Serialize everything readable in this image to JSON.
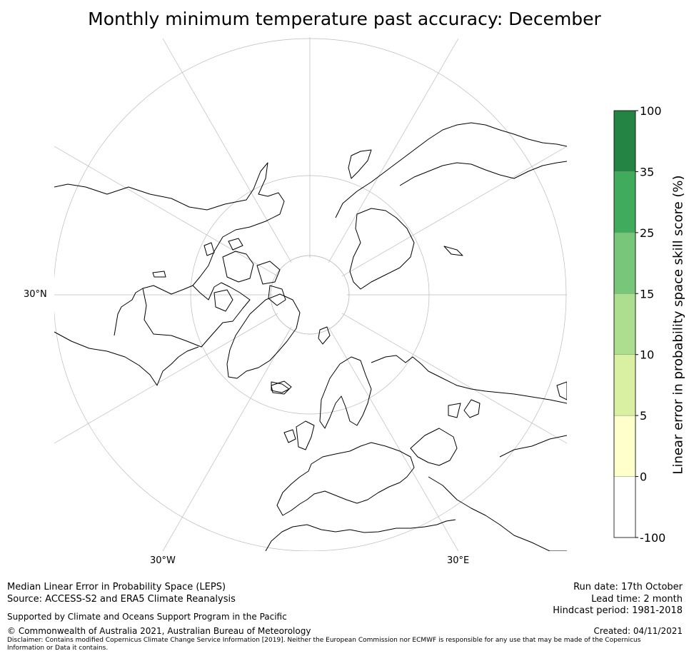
{
  "title": "Monthly minimum temperature past accuracy: December",
  "map": {
    "projection": "North polar stereographic",
    "graticule_labels": {
      "lat_30n": "30°N",
      "lon_30w": "30°W",
      "lon_30e": "30°E"
    },
    "land_outline_color": "#000000",
    "graticule_color": "#bbbbbb"
  },
  "colorbar": {
    "label": "Linear error in probability space skill score (%)",
    "bins": [
      {
        "from": -100,
        "to": 0,
        "color": "#ffffff"
      },
      {
        "from": 0,
        "to": 5,
        "color": "#ffffcc"
      },
      {
        "from": 5,
        "to": 10,
        "color": "#d9f0a3"
      },
      {
        "from": 10,
        "to": 15,
        "color": "#addd8e"
      },
      {
        "from": 15,
        "to": 25,
        "color": "#78c679"
      },
      {
        "from": 25,
        "to": 35,
        "color": "#41ab5d"
      },
      {
        "from": 35,
        "to": 100,
        "color": "#238443"
      }
    ],
    "tick_labels": [
      "-100",
      "0",
      "5",
      "10",
      "15",
      "25",
      "35",
      "100"
    ]
  },
  "footer": {
    "line1": "Median Linear Error in Probability Space (LEPS)",
    "line2": "Source: ACCESS-S2 and ERA5 Climate Reanalysis",
    "support": "Supported by Climate and Oceans Support Program in the Pacific",
    "copyright": "© Commonwealth of Australia 2021, Australian Bureau of Meteorology",
    "disclaimer": "Disclaimer: Contains modified Copernicus Climate Change Service Information [2019]. Neither the European Commission nor ECMWF is responsible for any use that may be made of the Copernicus Information or Data it contains.",
    "run_date": "Run date: 17th October",
    "lead_time": "Lead time: 2 month",
    "hindcast": "Hindcast period: 1981-2018",
    "created": "Created: 04/11/2021"
  }
}
